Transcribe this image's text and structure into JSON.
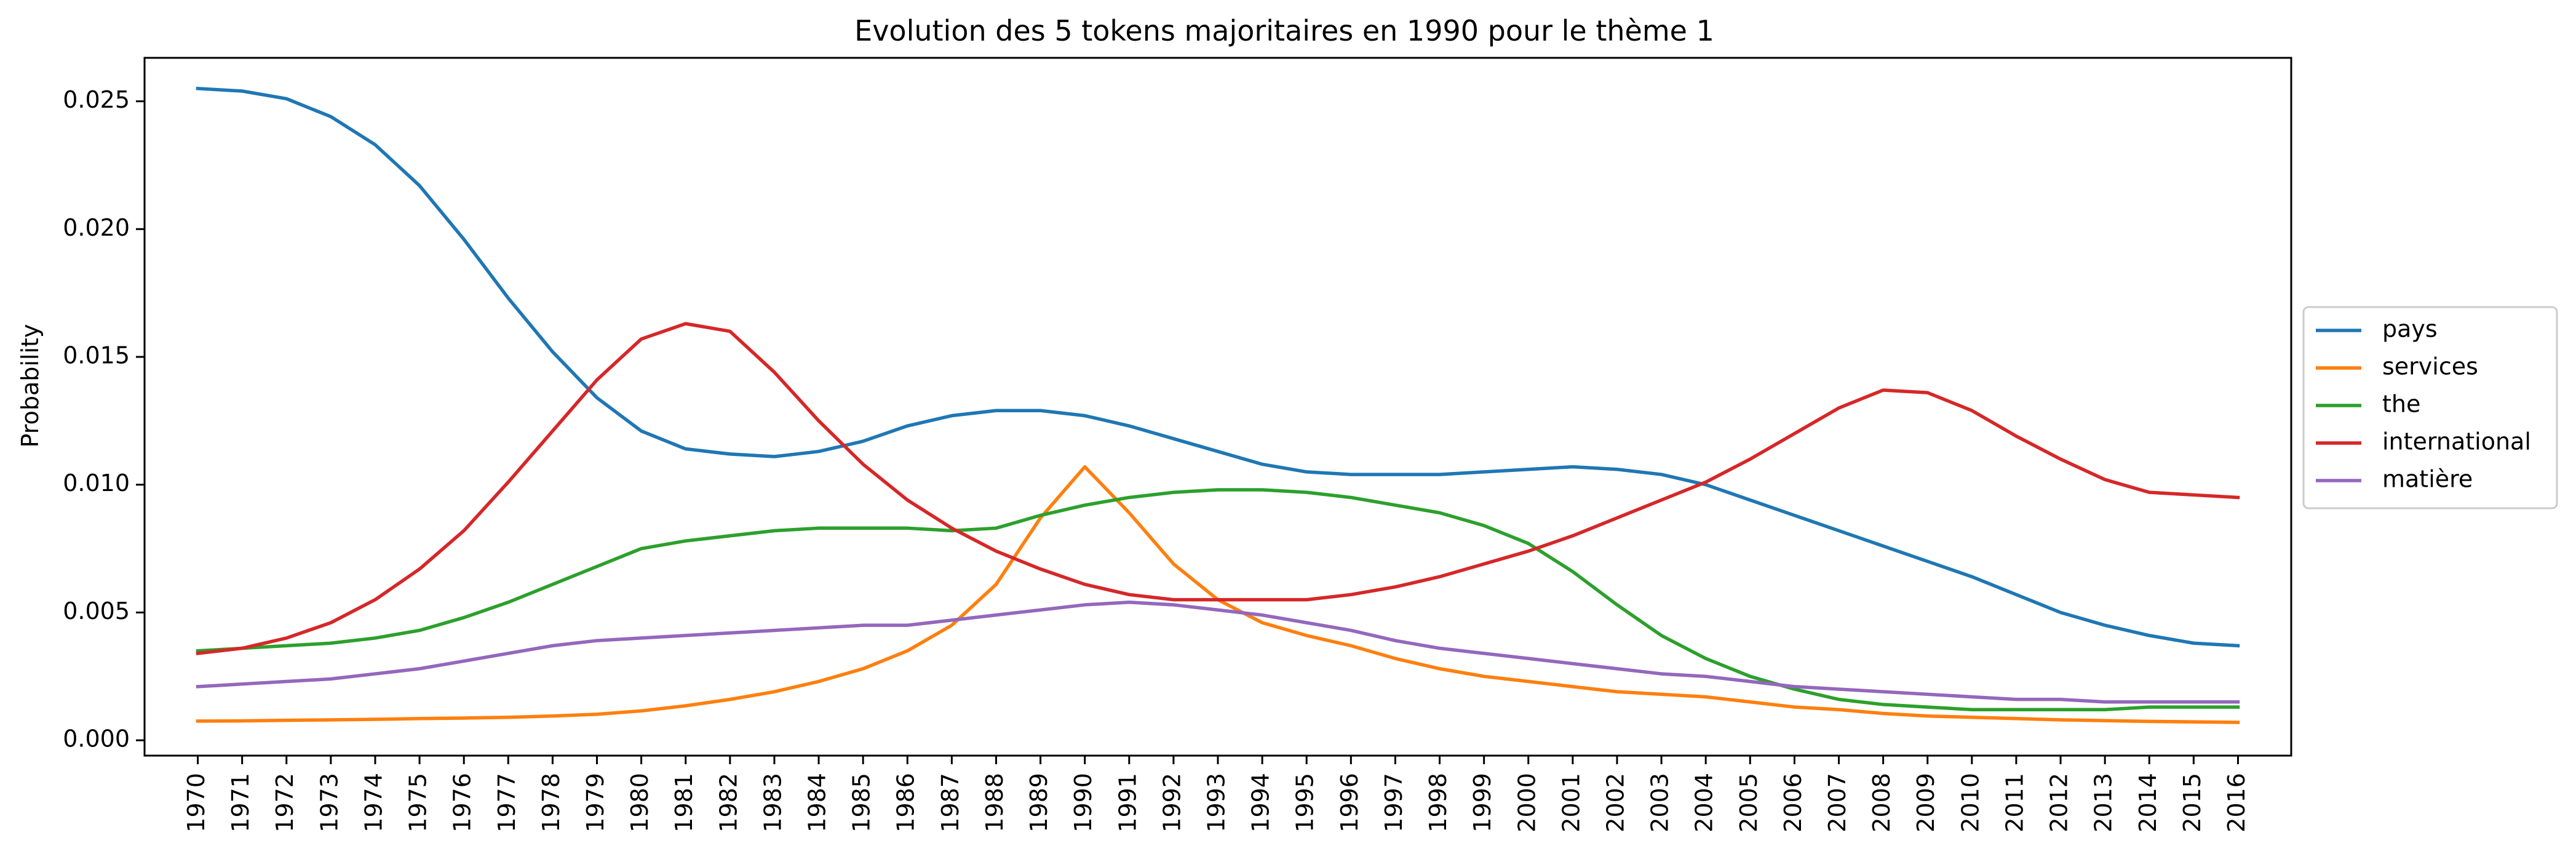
{
  "chart_data": {
    "type": "line",
    "title": "Evolution des 5 tokens majoritaires en 1990 pour le thème 1",
    "xlabel": "",
    "ylabel": "Probability",
    "x": [
      1970,
      1971,
      1972,
      1973,
      1974,
      1975,
      1976,
      1977,
      1978,
      1979,
      1980,
      1981,
      1982,
      1983,
      1984,
      1985,
      1986,
      1987,
      1988,
      1989,
      1990,
      1991,
      1992,
      1993,
      1994,
      1995,
      1996,
      1997,
      1998,
      1999,
      2000,
      2001,
      2002,
      2003,
      2004,
      2005,
      2006,
      2007,
      2008,
      2009,
      2010,
      2011,
      2012,
      2013,
      2014,
      2015,
      2016
    ],
    "ylim": [
      -0.0006,
      0.0267
    ],
    "yticks": [
      0.0,
      0.005,
      0.01,
      0.015,
      0.02,
      0.025
    ],
    "ytick_labels": [
      "0.000",
      "0.005",
      "0.010",
      "0.015",
      "0.020",
      "0.025"
    ],
    "grid": false,
    "legend_position": "center-right outside",
    "series": [
      {
        "name": "pays",
        "color": "#1f77b4",
        "values": [
          0.0255,
          0.0254,
          0.0251,
          0.0244,
          0.0233,
          0.0217,
          0.0196,
          0.0173,
          0.0152,
          0.0134,
          0.0121,
          0.0114,
          0.0112,
          0.0111,
          0.0113,
          0.0117,
          0.0123,
          0.0127,
          0.0129,
          0.0129,
          0.0127,
          0.0123,
          0.0118,
          0.0113,
          0.0108,
          0.0105,
          0.0104,
          0.0104,
          0.0104,
          0.0105,
          0.0106,
          0.0107,
          0.0106,
          0.0104,
          0.01,
          0.0094,
          0.0088,
          0.0082,
          0.0076,
          0.007,
          0.0064,
          0.0057,
          0.005,
          0.0045,
          0.0041,
          0.0038,
          0.0037
        ]
      },
      {
        "name": "services",
        "color": "#ff7f0e",
        "values": [
          0.00075,
          0.00076,
          0.00078,
          0.0008,
          0.00082,
          0.00085,
          0.00087,
          0.0009,
          0.00095,
          0.00102,
          0.00115,
          0.00135,
          0.0016,
          0.0019,
          0.0023,
          0.0028,
          0.0035,
          0.0045,
          0.0061,
          0.0087,
          0.0107,
          0.0089,
          0.0069,
          0.0055,
          0.0046,
          0.0041,
          0.0037,
          0.0032,
          0.0028,
          0.0025,
          0.0023,
          0.0021,
          0.0019,
          0.0018,
          0.0017,
          0.0015,
          0.0013,
          0.0012,
          0.00105,
          0.00095,
          0.0009,
          0.00085,
          0.0008,
          0.00077,
          0.00074,
          0.00072,
          0.0007
        ]
      },
      {
        "name": "the",
        "color": "#2ca02c",
        "values": [
          0.0035,
          0.0036,
          0.0037,
          0.0038,
          0.004,
          0.0043,
          0.0048,
          0.0054,
          0.0061,
          0.0068,
          0.0075,
          0.0078,
          0.008,
          0.0082,
          0.0083,
          0.0083,
          0.0083,
          0.0082,
          0.0083,
          0.0088,
          0.0092,
          0.0095,
          0.0097,
          0.0098,
          0.0098,
          0.0097,
          0.0095,
          0.0092,
          0.0089,
          0.0084,
          0.0077,
          0.0066,
          0.0053,
          0.0041,
          0.0032,
          0.0025,
          0.002,
          0.0016,
          0.0014,
          0.0013,
          0.0012,
          0.0012,
          0.0012,
          0.0012,
          0.0013,
          0.0013,
          0.0013
        ]
      },
      {
        "name": "international",
        "color": "#d62728",
        "values": [
          0.0034,
          0.0036,
          0.004,
          0.0046,
          0.0055,
          0.0067,
          0.0082,
          0.0101,
          0.0121,
          0.0141,
          0.0157,
          0.0163,
          0.016,
          0.0144,
          0.0125,
          0.0108,
          0.0094,
          0.0083,
          0.0074,
          0.0067,
          0.0061,
          0.0057,
          0.0055,
          0.0055,
          0.0055,
          0.0055,
          0.0057,
          0.006,
          0.0064,
          0.0069,
          0.0074,
          0.008,
          0.0087,
          0.0094,
          0.0101,
          0.011,
          0.012,
          0.013,
          0.0137,
          0.0136,
          0.0129,
          0.0119,
          0.011,
          0.0102,
          0.0097,
          0.0096,
          0.0095
        ]
      },
      {
        "name": "matière",
        "color": "#9467bd",
        "values": [
          0.0021,
          0.0022,
          0.0023,
          0.0024,
          0.0026,
          0.0028,
          0.0031,
          0.0034,
          0.0037,
          0.0039,
          0.004,
          0.0041,
          0.0042,
          0.0043,
          0.0044,
          0.0045,
          0.0045,
          0.0047,
          0.0049,
          0.0051,
          0.0053,
          0.0054,
          0.0053,
          0.0051,
          0.0049,
          0.0046,
          0.0043,
          0.0039,
          0.0036,
          0.0034,
          0.0032,
          0.003,
          0.0028,
          0.0026,
          0.0025,
          0.0023,
          0.0021,
          0.002,
          0.0019,
          0.0018,
          0.0017,
          0.0016,
          0.0016,
          0.0015,
          0.0015,
          0.0015,
          0.0015
        ]
      }
    ]
  }
}
